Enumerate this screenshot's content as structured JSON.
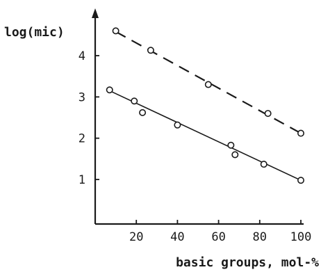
{
  "chart_data": {
    "type": "scatter",
    "title": "",
    "xlabel": "basic groups, mol-%",
    "ylabel": "log(mic)",
    "xlim": [
      0,
      102
    ],
    "ylim": [
      0,
      4.8
    ],
    "xticks": [
      20,
      40,
      60,
      80,
      100
    ],
    "xtick_labels": [
      "20",
      "40",
      "60",
      "80",
      "100"
    ],
    "yticks": [
      1,
      2,
      3,
      4
    ],
    "ytick_labels": [
      "1",
      "2",
      "3",
      "4"
    ],
    "grid": false,
    "legend": "none",
    "series": [
      {
        "line_style": "dashed",
        "x": [
          10,
          27,
          55,
          84,
          100
        ],
        "y": [
          4.6,
          4.13,
          3.3,
          2.6,
          2.12
        ],
        "fit": {
          "x": [
            10,
            100
          ],
          "y": [
            4.58,
            2.12
          ]
        }
      },
      {
        "line_style": "solid",
        "x": [
          7,
          19,
          23,
          40,
          66,
          68,
          82,
          100
        ],
        "y": [
          3.17,
          2.9,
          2.62,
          2.32,
          1.83,
          1.6,
          1.37,
          0.98
        ],
        "fit": {
          "x": [
            7,
            100
          ],
          "y": [
            3.15,
            0.98
          ]
        }
      }
    ]
  }
}
